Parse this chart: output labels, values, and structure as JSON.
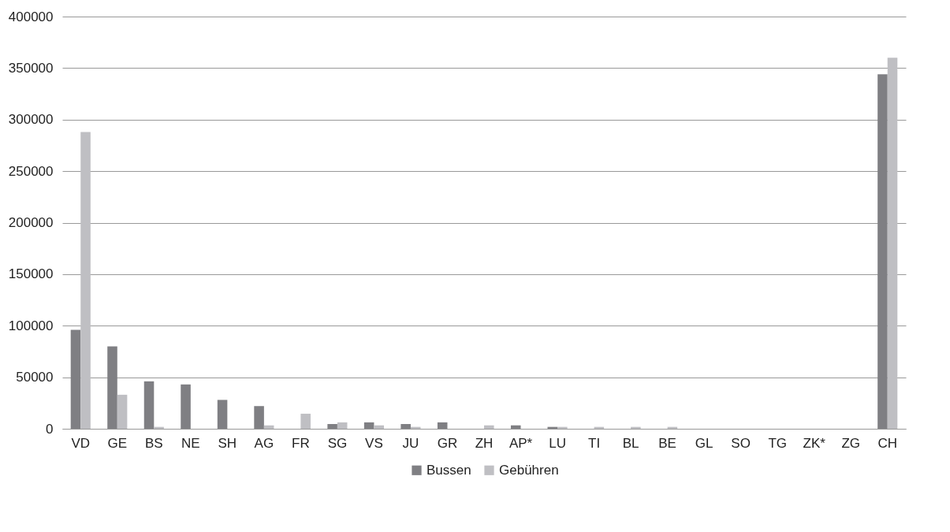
{
  "chart_data": {
    "type": "bar",
    "categories": [
      "VD",
      "GE",
      "BS",
      "NE",
      "SH",
      "AG",
      "FR",
      "SG",
      "VS",
      "JU",
      "GR",
      "ZH",
      "AP*",
      "LU",
      "TI",
      "BL",
      "BE",
      "GL",
      "SO",
      "TG",
      "ZK*",
      "ZG",
      "CH"
    ],
    "series": [
      {
        "name": "Bussen",
        "color": "#7f7f83",
        "values": [
          96000,
          80000,
          46000,
          43000,
          28000,
          22000,
          0,
          4600,
          6200,
          4600,
          6200,
          0,
          3300,
          1800,
          0,
          0,
          0,
          0,
          0,
          0,
          0,
          0,
          344000
        ]
      },
      {
        "name": "Gebühren",
        "color": "#bfbfc3",
        "values": [
          288000,
          33000,
          1800,
          0,
          0,
          3300,
          14600,
          6200,
          3300,
          1800,
          0,
          3300,
          0,
          1800,
          1800,
          1800,
          1800,
          0,
          0,
          0,
          0,
          0,
          360000
        ]
      }
    ],
    "ylim": [
      0,
      400000
    ],
    "yticks": [
      0,
      50000,
      100000,
      150000,
      200000,
      250000,
      300000,
      350000,
      400000
    ],
    "grid": "y",
    "legend": "bottom"
  }
}
